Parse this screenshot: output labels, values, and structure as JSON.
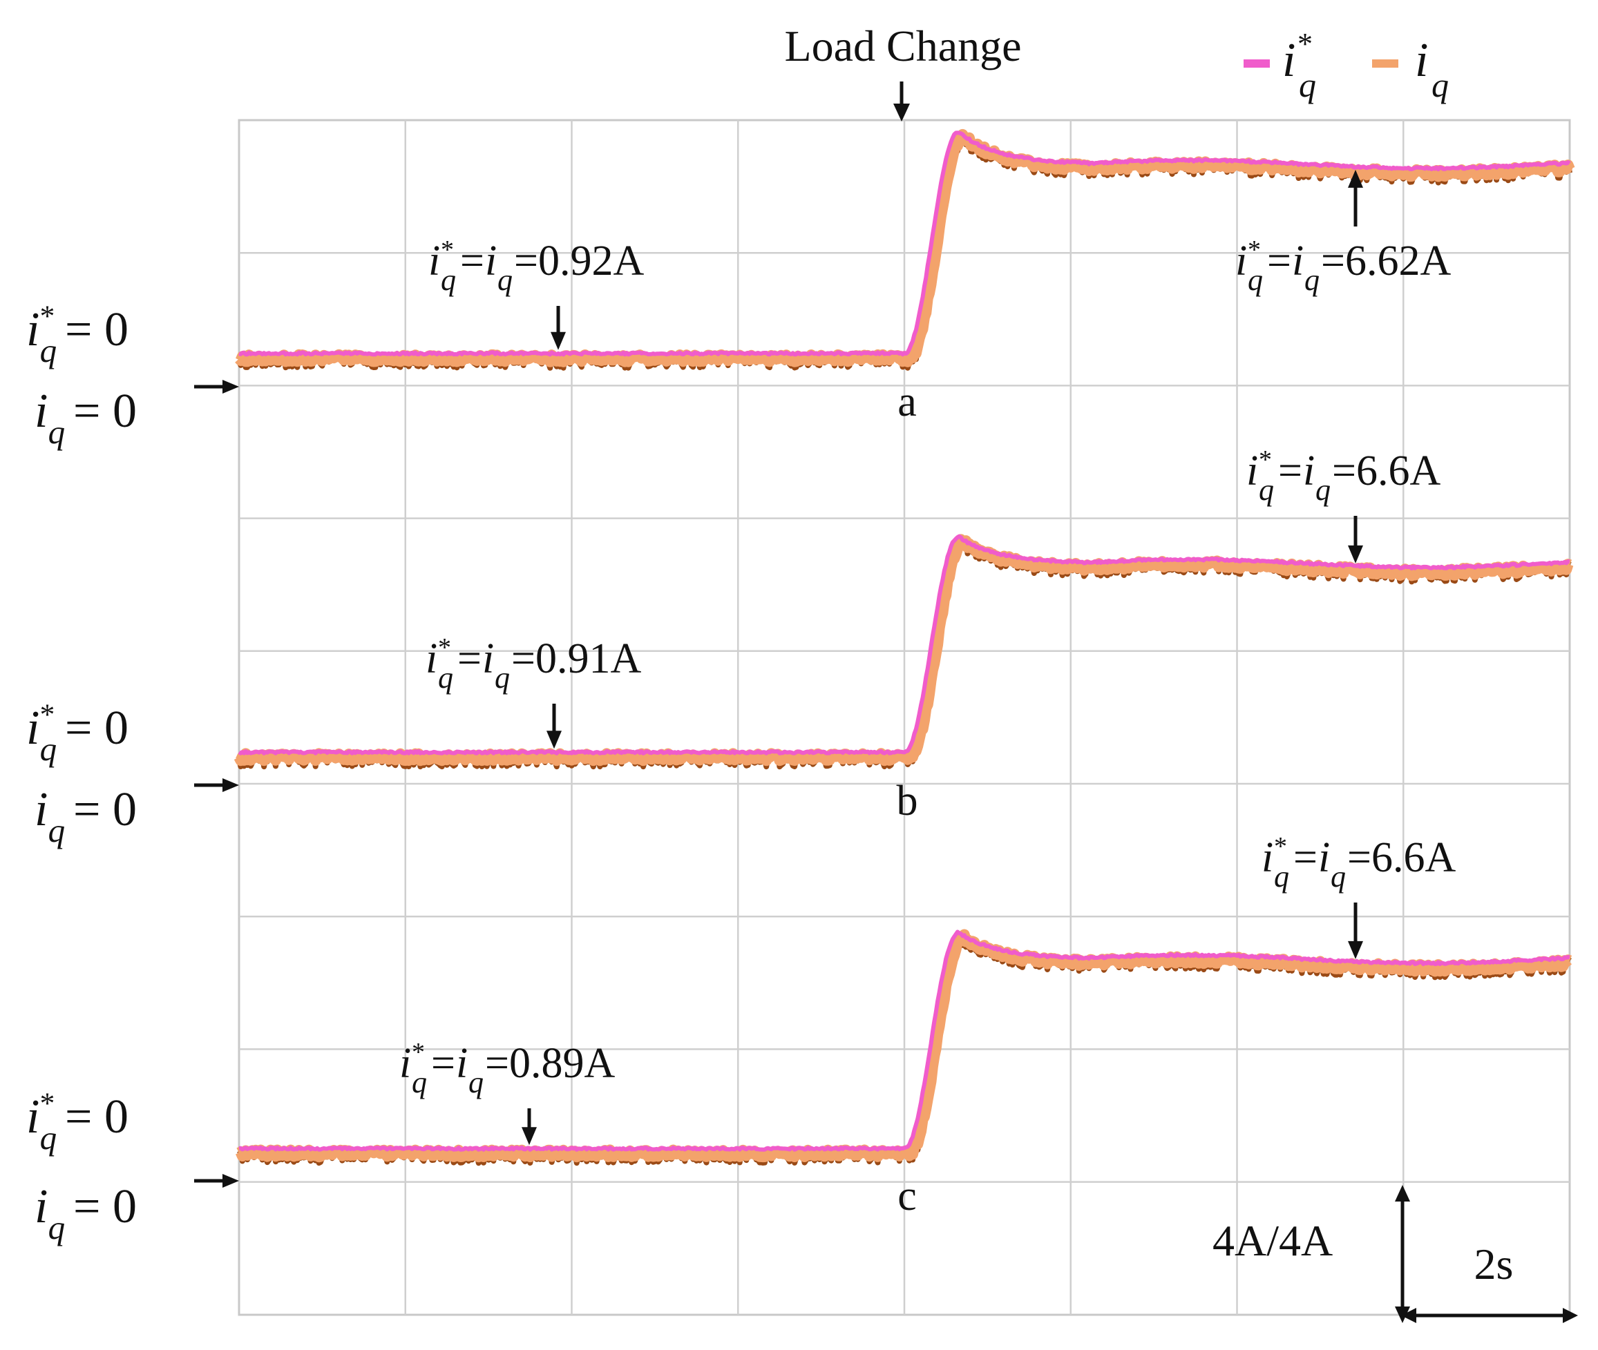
{
  "chart_data": {
    "type": "line",
    "title": "Load Change",
    "x_unit": "s",
    "x_range": [
      0,
      16
    ],
    "x_scale_label": "2s",
    "y_scale_label": "4A/4A",
    "y_per_division_A": 4,
    "grid": "on",
    "legend": [
      {
        "var": "i",
        "sub": "q",
        "sup": "*",
        "color": "#f05ccb"
      },
      {
        "var": "i",
        "sub": "q",
        "sup": "",
        "color": "#f3a36b"
      }
    ],
    "load_change_time_s": 8.0,
    "traces": [
      {
        "id": "a",
        "zero_label_ref": {
          "var": "i",
          "sub": "q",
          "sup": "*",
          "value": "= 0"
        },
        "zero_label_fb": {
          "var": "i",
          "sub": "q",
          "value": "= 0"
        },
        "initial_A": 0.92,
        "final_A": 6.62,
        "peak_A": 7.6,
        "annot_initial": {
          "value": "=0.92A",
          "arrow": "down"
        },
        "annot_final": {
          "value": "=6.62A",
          "arrow": "up"
        }
      },
      {
        "id": "b",
        "zero_label_ref": {
          "var": "i",
          "sub": "q",
          "sup": "*",
          "value": "= 0"
        },
        "zero_label_fb": {
          "var": "i",
          "sub": "q",
          "value": "= 0"
        },
        "initial_A": 0.91,
        "final_A": 6.6,
        "peak_A": 7.4,
        "annot_initial": {
          "value": "=0.91A",
          "arrow": "down"
        },
        "annot_final": {
          "value": "=6.6A",
          "arrow": "down"
        }
      },
      {
        "id": "c",
        "zero_label_ref": {
          "var": "i",
          "sub": "q",
          "sup": "*",
          "value": "= 0"
        },
        "zero_label_fb": {
          "var": "i",
          "sub": "q",
          "value": "= 0"
        },
        "initial_A": 0.89,
        "final_A": 6.6,
        "peak_A": 7.4,
        "annot_initial": {
          "value": "=0.89A",
          "arrow": "down"
        },
        "annot_final": {
          "value": "=6.6A",
          "arrow": "down"
        }
      }
    ]
  }
}
